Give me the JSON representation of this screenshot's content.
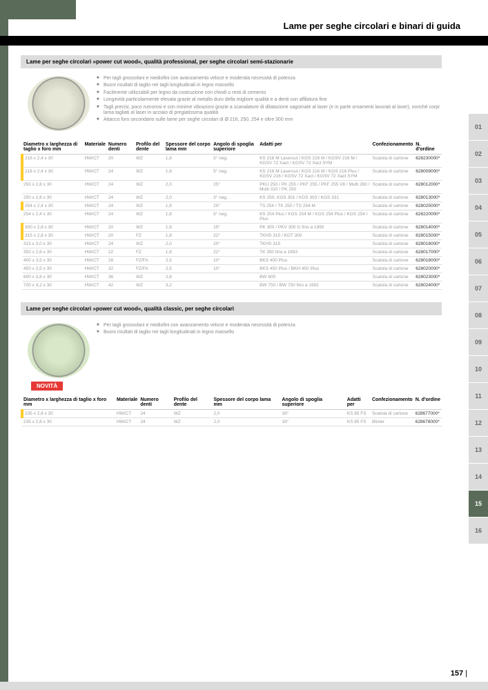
{
  "page_title": "Lame per seghe circolari e binari di guida",
  "page_number": "157",
  "novita_label": "NOVITÀ",
  "side_tabs": [
    "01",
    "02",
    "03",
    "04",
    "05",
    "06",
    "07",
    "08",
    "09",
    "10",
    "11",
    "12",
    "13",
    "14",
    "15",
    "16"
  ],
  "side_active": "15",
  "section1": {
    "header": "Lame per seghe circolari »power cut wood«, qualità professional, per seghe circolari semi-stazionarie",
    "bullets": [
      "Per tagli grossolani e mediofini con avanzamento veloce e moderata necessità di potenza",
      "Buoni risultati di taglio nei tagli longitudinali in legno massello",
      "Facilmente utilizzabili per legno da costruzione con chiodi o resti di cemento",
      "Longevità particolarmente elevata grazie al metallo duro della migliore qualità e a denti con affilatura fine",
      "Tagli precisi, poco rumorosi e con minime vibrazioni grazie a scanalature di dilatazione sagomate al laser (e in parte ornamenti lavorati al laser), nonché corpi lama tagliati al laser in acciaio di pregiatissima qualità",
      "Attacco foro secondario sulle lame per seghe circolari di Ø 216, 250, 254 e oltre 300 mm"
    ]
  },
  "section2": {
    "header": "Lame per seghe circolari »power cut wood«, qualità classic, per seghe circolari",
    "bullets": [
      "Per tagli grossolani e mediofini con avanzamento veloce e moderata necessità di potenza",
      "Buoni risultati di taglio nei tagli longitudinali in legno massello"
    ]
  },
  "columns": [
    "Diametro x larghezza di taglio x foro mm",
    "Materiale",
    "Numero denti",
    "Profilo del dente",
    "Spessore del corpo lama mm",
    "Angolo di spoglia superiore",
    "Adatti per",
    "Confezionamento",
    "N. d'ordine"
  ],
  "table1": [
    {
      "y": true,
      "c": [
        "216 x 2,4 x 30",
        "HW/CT",
        "20",
        "WZ",
        "1,8",
        "5° neg.",
        "KS 216 M Lasercut / KGS 216 M / KGSV 216 M / KGSV 72 Xact / KGSV 72 Xact SYM",
        "Scatola di cartone",
        "628230000*"
      ]
    },
    {
      "y": true,
      "c": [
        "216 x 2,4 x 30",
        "HW/CT",
        "24",
        "WZ",
        "1,8",
        "5° neg.",
        "KS 216 M Lasercut / KGS 216 M / KGS 216 Plus / KGSV 216 / KGSV 72 Xact / KGSV 72 Xact SYM",
        "Scatola di cartone",
        "628009000*"
      ]
    },
    {
      "y": false,
      "c": [
        "250 x 2,8 x 30",
        "HW/CT",
        "24",
        "WZ",
        "2,0",
        "25°",
        "PKU 250 / PK 255 / PKF 255 / PKF 255 V8 / Multi 260 / Multi 310 / PK 250",
        "Scatola di cartone",
        "628012000*"
      ]
    },
    {
      "y": false,
      "c": [
        "250 x 2,8 x 30",
        "HW/CT",
        "24",
        "WZ",
        "2,0",
        "3° neg.",
        "KS 250, KGS 301 / KGS 303 / KGS 331",
        "Scatola di cartone",
        "628013000*"
      ]
    },
    {
      "y": true,
      "c": [
        "254 x 2,4 x 30",
        "HW/CT",
        "24",
        "WZ",
        "1,8",
        "20°",
        "TS 254 / TK 250 / TS 254 M",
        "Scatola di cartone",
        "628025000*"
      ]
    },
    {
      "y": false,
      "c": [
        "254 x 2,4 x 30",
        "HW/CT",
        "24",
        "WZ",
        "1,8",
        "5° neg.",
        "KS 254 Plus / KGS 254 M / KGS 254 Plus / KGS 254 I Plus",
        "Scatola di cartone",
        "628220000*"
      ]
    },
    {
      "y": true,
      "c": [
        "300 x 2,8 x 30",
        "HW/CT",
        "20",
        "WZ",
        "1,8",
        "15°",
        "PK 300 / PKV 300 G fino a 1995",
        "Scatola di cartone",
        "628014000*"
      ]
    },
    {
      "y": true,
      "c": [
        "315 x 2,8 x 30",
        "HW/CT",
        "20",
        "FZ",
        "1,8",
        "22°",
        "TKHS 315 / KGT 300",
        "Scatola di cartone",
        "628015000*"
      ]
    },
    {
      "y": false,
      "c": [
        "315 x 3,0 x 30",
        "HW/CT",
        "24",
        "WZ",
        "2,0",
        "20°",
        "TKHS 315",
        "Scatola di cartone",
        "628016000*"
      ]
    },
    {
      "y": false,
      "c": [
        "350 x 2,6 x 30",
        "HW/CT",
        "22",
        "FZ",
        "1,8",
        "22°",
        "TK 350 fino a 1993",
        "Scatola di cartone",
        "628017000*"
      ]
    },
    {
      "y": false,
      "c": [
        "400 x 3,5 x 30",
        "HW/CT",
        "28",
        "FZ/FA",
        "2,5",
        "10°",
        "BKS 400 Plus",
        "Scatola di cartone",
        "628018000*"
      ]
    },
    {
      "y": false,
      "c": [
        "450 x 3,5 x 30",
        "HW/CT",
        "32",
        "FZ/FA",
        "2,5",
        "10°",
        "BKS 450 Plus / BKH 450 Plus",
        "Scatola di cartone",
        "628020000*"
      ]
    },
    {
      "y": false,
      "c": [
        "600 x 3,8 x 30",
        "HW/CT",
        "36",
        "WZ",
        "2,8",
        "",
        "BW 600",
        "Scatola di cartone",
        "628023000*"
      ]
    },
    {
      "y": false,
      "c": [
        "700 x 4,2 x 30",
        "HW/CT",
        "42",
        "WZ",
        "3,2",
        "",
        "BW 750 / BW 750 fino a 1992",
        "Scatola di cartone",
        "628024000*"
      ]
    }
  ],
  "table2": [
    {
      "y": true,
      "c": [
        "235 x 2,8 x 30",
        "HW/CT",
        "24",
        "WZ",
        "2,0",
        "18°",
        "KS 85 FS",
        "Scatola di cartone",
        "628677000*"
      ]
    },
    {
      "y": false,
      "c": [
        "235 x 2,8 x 30",
        "HW/CT",
        "24",
        "WZ",
        "2,0",
        "18°",
        "KS 85 FS",
        "Blister",
        "628678000*"
      ]
    }
  ]
}
